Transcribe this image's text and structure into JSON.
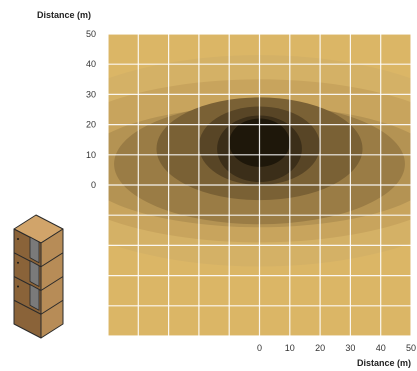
{
  "chart_data": {
    "type": "heatmap",
    "title": "",
    "xlabel": "Distance (m)",
    "ylabel": "Distance (m)",
    "x_ticks": [
      0,
      10,
      20,
      30,
      40,
      50
    ],
    "y_ticks": [
      0,
      10,
      20,
      30,
      40,
      50
    ],
    "xlim": [
      -50,
      50
    ],
    "ylim": [
      -50,
      50
    ],
    "grid": true,
    "source_location": {
      "x": 0,
      "y": 14
    },
    "colors": {
      "background": "#dbb666",
      "levels": [
        "#d4b166",
        "#c8a45d",
        "#b49353",
        "#9a7c45",
        "#7a6135",
        "#584526",
        "#3b2e19",
        "#1e170a"
      ],
      "grid": "#ffffff"
    }
  },
  "legend_icon": {
    "name": "cabinet-stack-icon",
    "colors": {
      "front": "#b78c57",
      "side": "#8a6339",
      "top": "#d1a46a",
      "door": "#7a7a7a"
    }
  }
}
